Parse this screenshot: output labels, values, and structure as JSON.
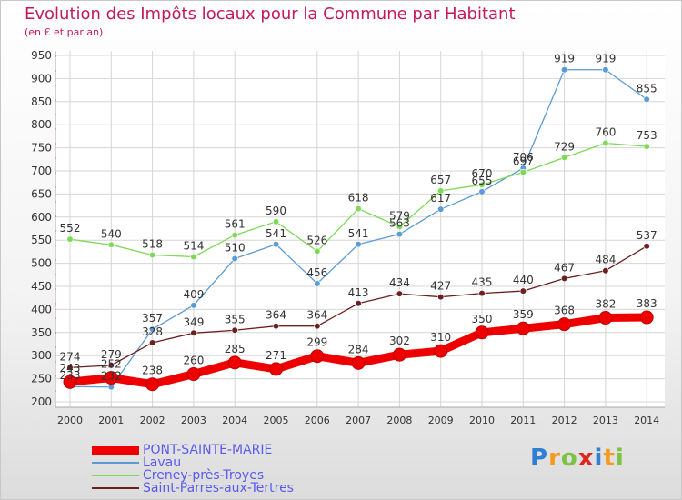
{
  "header": {
    "title": "Evolution des Impôts locaux pour la Commune par Habitant",
    "subtitle": "(en € et par an)"
  },
  "logo": {
    "letters": [
      "P",
      "r",
      "o",
      "x",
      "i",
      "t",
      "i"
    ]
  },
  "chart_data": {
    "type": "line",
    "title": "Evolution des Impôts locaux pour la Commune par Habitant",
    "subtitle": "(en € et par an)",
    "categories": [
      "2000",
      "2001",
      "2002",
      "2003",
      "2004",
      "2005",
      "2006",
      "2007",
      "2008",
      "2009",
      "2010",
      "2011",
      "2012",
      "2013",
      "2014"
    ],
    "ylim": [
      200,
      950
    ],
    "yticks": [
      200,
      250,
      300,
      350,
      400,
      450,
      500,
      550,
      600,
      650,
      700,
      750,
      800,
      850,
      900,
      950
    ],
    "grid": true,
    "legend_position": "bottom-left",
    "series": [
      {
        "name": "PONT-SAINTE-MARIE",
        "color": "#ee0000",
        "values": [
          243,
          252,
          238,
          260,
          285,
          271,
          299,
          284,
          302,
          310,
          350,
          359,
          368,
          382,
          383
        ]
      },
      {
        "name": "Lavau",
        "color": "#5b9bd5",
        "values": [
          233,
          232,
          357,
          409,
          510,
          541,
          456,
          541,
          563,
          617,
          655,
          706,
          919,
          919,
          855
        ]
      },
      {
        "name": "Creney-près-Troyes",
        "color": "#7ed957",
        "values": [
          552,
          540,
          518,
          514,
          561,
          590,
          526,
          618,
          579,
          657,
          670,
          697,
          729,
          760,
          753
        ]
      },
      {
        "name": "Saint-Parres-aux-Tertres",
        "color": "#6b1f1f",
        "values": [
          274,
          279,
          328,
          349,
          355,
          364,
          364,
          413,
          434,
          427,
          435,
          440,
          467,
          484,
          537
        ]
      }
    ]
  }
}
